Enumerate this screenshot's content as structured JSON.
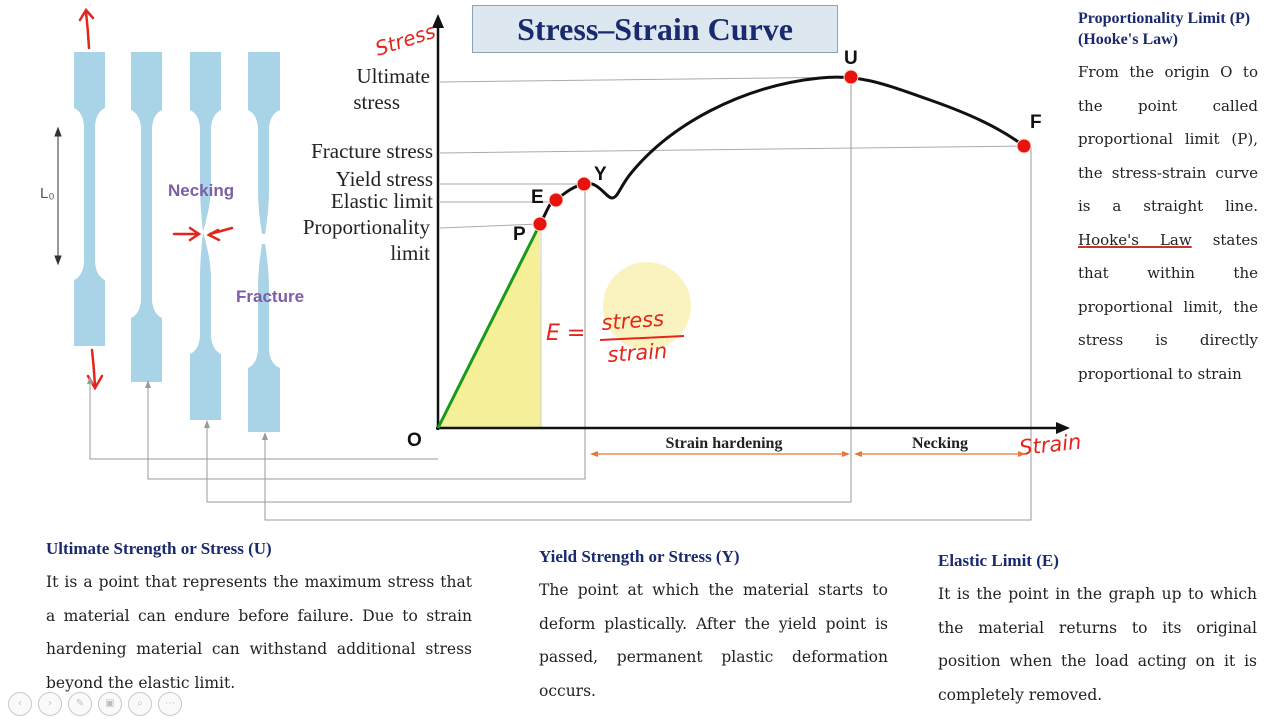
{
  "title": "Stress–Strain Curve",
  "specimen": {
    "gauge_label": "L₀",
    "necking_label": "Necking",
    "fracture_label": "Fracture"
  },
  "graph": {
    "y_axis_handwritten": "Stress",
    "x_axis_handwritten": "Strain",
    "origin_label": "O",
    "points": {
      "P": "P",
      "E": "E",
      "Y": "Y",
      "U": "U",
      "F": "F"
    },
    "left_labels": {
      "ultimate_1": "Ultimate",
      "ultimate_2": "stress",
      "fracture": "Fracture stress",
      "yield": "Yield stress",
      "elastic": "Elastic limit",
      "prop_1": "Proportionality",
      "prop_2": "limit"
    },
    "regions": {
      "strain_hardening": "Strain hardening",
      "necking": "Necking"
    },
    "formula": {
      "lhs": "E =",
      "numerator": "stress",
      "denominator": "strain"
    }
  },
  "right_panel": {
    "heading": "Proportionality Limit (P) (Hooke's Law)",
    "text_before": "From the origin O to the point called proportional limit (P), the stress-strain curve is a straight line.",
    "underlined": "Hooke's Law",
    "text_after": "states that within the proportional limit, the stress is directly proportional to strain"
  },
  "bottom": [
    {
      "heading": "Ultimate Strength or Stress (U)",
      "text": "It is a point that represents the maximum stress that a material can endure before failure. Due to strain hardening material can withstand additional stress beyond the elastic limit."
    },
    {
      "heading": "Yield Strength or Stress (Y)",
      "text": "The point at which the material starts to deform plastically. After the yield point is passed, permanent plastic deformation occurs."
    },
    {
      "heading": "Elastic Limit (E)",
      "text": "It is the point in the graph up to which the material returns to its original position when the load acting on it is completely removed."
    }
  ],
  "nav": [
    "‹",
    "›",
    "✎",
    "▣",
    "⌕",
    "⋯"
  ],
  "colors": {
    "title_bg": "#dde7f0",
    "title_text": "#1a2a6e",
    "specimen": "#a9d3e6",
    "point_red": "#e8140c",
    "elastic_line": "#1a9a1a",
    "elastic_fill": "#f6ef9a",
    "handwriting_red": "#e3261b",
    "necking_purple": "#7b5ea7",
    "dimension_orange": "#e07b39"
  }
}
